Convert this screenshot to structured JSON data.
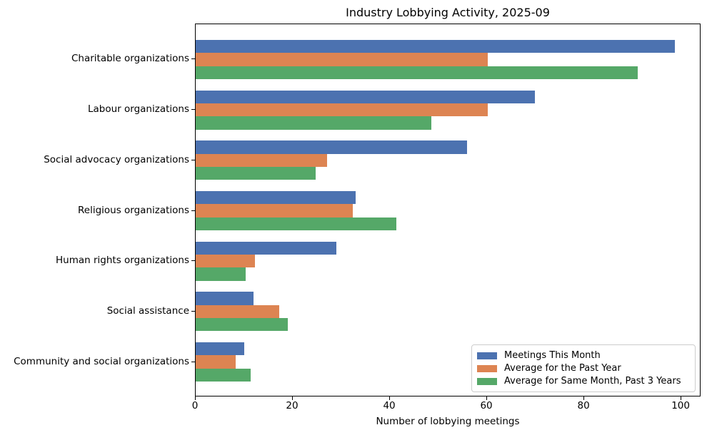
{
  "chart_data": {
    "type": "bar",
    "orientation": "horizontal",
    "title": "Industry Lobbying Activity, 2025-09",
    "xlabel": "Number of lobbying meetings",
    "categories": [
      "Charitable organizations",
      "Labour organizations",
      "Social advocacy organizations",
      "Religious organizations",
      "Human rights organizations",
      "Social assistance",
      "Community and social organizations"
    ],
    "series": [
      {
        "name": "Meetings This Month",
        "color": "#4C72B0",
        "values": [
          99,
          70,
          56,
          33,
          29,
          12,
          10
        ]
      },
      {
        "name": "Average for the Past Year",
        "color": "#DD8452",
        "values": [
          60.3,
          60.3,
          27.2,
          32.5,
          12.3,
          17.2,
          8.2
        ]
      },
      {
        "name": "Average for Same Month, Past 3 Years",
        "color": "#55A868",
        "values": [
          91.3,
          48.7,
          24.7,
          41.5,
          10.3,
          19,
          11.3
        ]
      }
    ],
    "xlim": [
      0,
      104.1
    ],
    "xticks": [
      0,
      20,
      40,
      60,
      80,
      100
    ],
    "grid": false,
    "legend_position": "lower right",
    "background_color": "#ffffff",
    "text_color": "#000000"
  }
}
